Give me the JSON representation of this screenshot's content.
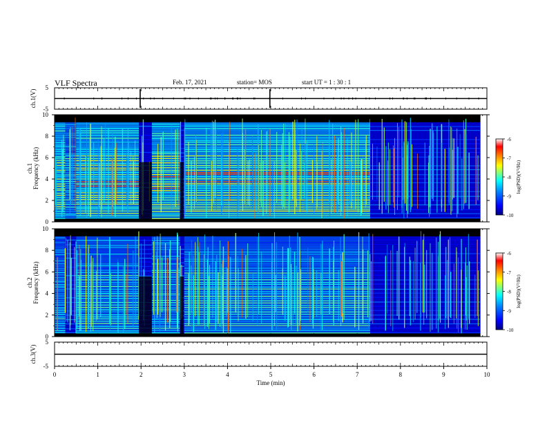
{
  "header": {
    "title": "VLF Spectra",
    "date": "Feb. 17, 2021",
    "station": "station= MOS",
    "start_ut": "start  UT =   1 : 30 : 1"
  },
  "colors": {
    "background": "#000000",
    "frame": "#000000",
    "colormap": [
      "#00007f",
      "#0000ff",
      "#007fff",
      "#00ffff",
      "#7fff7f",
      "#ffff00",
      "#ff7f00",
      "#ff0000",
      "#ffffff"
    ]
  },
  "chart_data": [
    {
      "type": "line",
      "panel": "ch1-waveform",
      "ylabel": "ch.1(V)",
      "ylim": [
        -5,
        5
      ],
      "ytick_labels": [
        "5",
        "-5"
      ],
      "x": [
        0,
        10
      ],
      "y": [
        0,
        0
      ]
    },
    {
      "type": "heatmap",
      "panel": "ch1-spectrogram",
      "ylabel_channel": "ch.1",
      "ylabel": "Frequency (kHz)",
      "ylim": [
        0,
        10
      ],
      "ytick_labels": [
        "0",
        "2",
        "4",
        "6",
        "8",
        "10"
      ],
      "xlim": [
        0,
        9.85
      ],
      "colorbar": {
        "label": "log(PSD)(V²/Hz)",
        "range": [
          -10,
          -6
        ],
        "tick_labels": [
          "-6",
          "-7",
          "-8",
          "-9",
          "-10"
        ]
      },
      "segments": [
        {
          "x": [
            0,
            0.25
          ],
          "level": "high"
        },
        {
          "x": [
            0.25,
            0.5
          ],
          "level": "medium"
        },
        {
          "x": [
            0.5,
            1.95
          ],
          "level": "high"
        },
        {
          "x": [
            1.95,
            2.25
          ],
          "level": "low"
        },
        {
          "x": [
            2.25,
            2.9
          ],
          "level": "high"
        },
        {
          "x": [
            2.9,
            3.0
          ],
          "level": "low"
        },
        {
          "x": [
            3.0,
            7.3
          ],
          "level": "high"
        },
        {
          "x": [
            7.3,
            9.85
          ],
          "level": "low"
        }
      ],
      "emission_band_khz": [
        0.3,
        9.3
      ]
    },
    {
      "type": "heatmap",
      "panel": "ch2-spectrogram",
      "ylabel_channel": "ch.2",
      "ylabel": "Frequency (kHz)",
      "ylim": [
        0,
        10
      ],
      "ytick_labels": [
        "0",
        "2",
        "4",
        "6",
        "8",
        "10"
      ],
      "xlim": [
        0,
        9.85
      ],
      "colorbar": {
        "label": "log(PSD)(V²/Hz)",
        "range": [
          -10,
          -6
        ],
        "tick_labels": [
          "-6",
          "-7",
          "-8",
          "-9",
          "-10"
        ]
      },
      "segments": [
        {
          "x": [
            0,
            0.25
          ],
          "level": "medium"
        },
        {
          "x": [
            0.25,
            0.5
          ],
          "level": "low"
        },
        {
          "x": [
            0.5,
            1.95
          ],
          "level": "medium"
        },
        {
          "x": [
            1.95,
            2.25
          ],
          "level": "low"
        },
        {
          "x": [
            2.25,
            2.9
          ],
          "level": "medium"
        },
        {
          "x": [
            2.9,
            3.0
          ],
          "level": "low"
        },
        {
          "x": [
            3.0,
            7.3
          ],
          "level": "medium"
        },
        {
          "x": [
            7.3,
            9.85
          ],
          "level": "low"
        }
      ],
      "emission_band_khz": [
        0.3,
        9.3
      ]
    },
    {
      "type": "line",
      "panel": "ch3-waveform",
      "ylabel": "ch.3(V)",
      "ylim": [
        -5,
        5
      ],
      "ytick_labels": [
        "5",
        "-5"
      ],
      "x": [
        0,
        10
      ],
      "y": [
        0,
        0
      ]
    }
  ],
  "xaxis": {
    "label": "Time  (min)",
    "range": [
      0,
      10
    ],
    "tick_labels": [
      "0",
      "1",
      "2",
      "3",
      "4",
      "5",
      "6",
      "7",
      "8",
      "9",
      "10"
    ]
  }
}
